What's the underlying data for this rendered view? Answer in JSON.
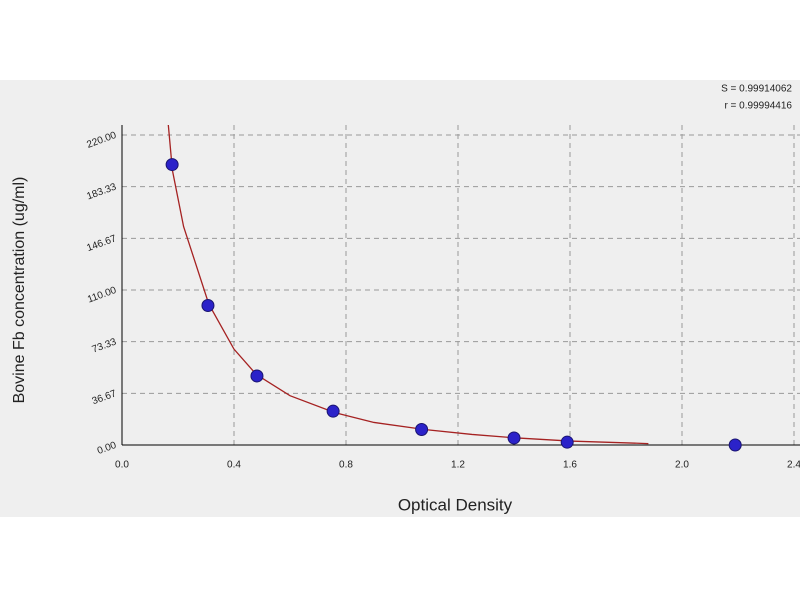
{
  "chart_data": {
    "type": "scatter",
    "x_label": "Optical Density",
    "y_label": "Bovine Fb concentration (ug/ml)",
    "annotations": [
      "S = 0.99914062",
      "r = 0.99994416"
    ],
    "xlim": [
      0,
      2.4
    ],
    "xticks": [
      {
        "value": 0,
        "label": "0.0"
      },
      0.4,
      0.8,
      1.2,
      1.6,
      {
        "value": 2,
        "label": "2.0"
      },
      2.4
    ],
    "ylim": [
      0,
      220
    ],
    "yticks": [
      {
        "value": 0,
        "label": "0.00"
      },
      {
        "value": 36.67,
        "label": "36.67"
      },
      {
        "value": 73.33,
        "label": "73.33"
      },
      {
        "value": 110,
        "label": "110.00"
      },
      {
        "value": 146.67,
        "label": "146.67"
      },
      {
        "value": 183.33,
        "label": "183.33"
      },
      {
        "value": 220,
        "label": "220.00"
      }
    ],
    "grid": true,
    "series": [
      {
        "mode": "markers",
        "color": "#2b22c9",
        "x": [
          0.179,
          0.307,
          0.482,
          0.754,
          1.07,
          1.4,
          1.59,
          2.19
        ],
        "values": [
          199,
          99,
          49,
          24,
          11,
          5,
          2,
          0
        ]
      },
      {
        "mode": "line",
        "color": "#a52222",
        "x": [
          0.165,
          0.18,
          0.22,
          0.31,
          0.4,
          0.48,
          0.6,
          0.76,
          0.9,
          1.08,
          1.25,
          1.41,
          1.6,
          1.88
        ],
        "values": [
          228,
          195,
          155,
          100,
          68,
          50,
          35,
          23,
          16,
          11,
          7.5,
          5,
          2.8,
          1
        ]
      }
    ]
  }
}
